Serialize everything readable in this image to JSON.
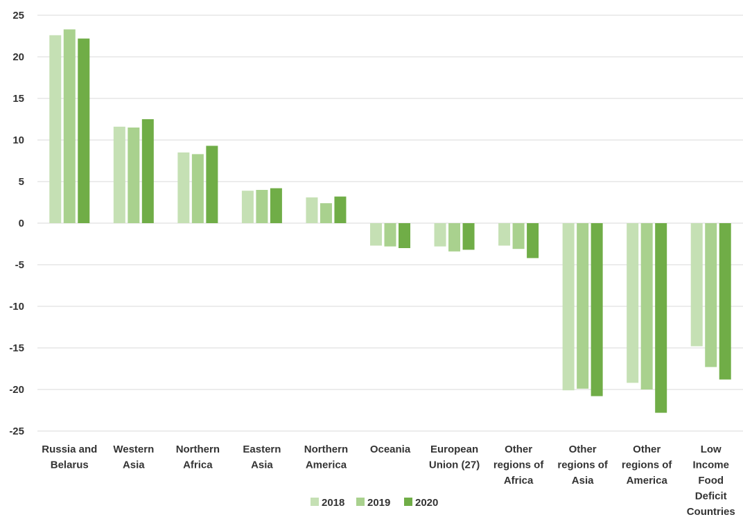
{
  "chart_data": {
    "type": "bar",
    "title": "",
    "xlabel": "",
    "ylabel": "",
    "ylim": [
      -25,
      25
    ],
    "yticks": [
      25,
      20,
      15,
      10,
      5,
      0,
      -5,
      -10,
      -15,
      -20,
      -25
    ],
    "grid": true,
    "legend_position": "bottom",
    "categories": [
      [
        "Russia and",
        "Belarus"
      ],
      [
        "Western",
        "Asia"
      ],
      [
        "Northern",
        "Africa"
      ],
      [
        "Eastern",
        "Asia"
      ],
      [
        "Northern",
        "America"
      ],
      [
        "Oceania"
      ],
      [
        "European",
        "Union (27)"
      ],
      [
        "Other",
        "regions of",
        "Africa"
      ],
      [
        "Other",
        "regions of",
        "Asia"
      ],
      [
        "Other",
        "regions of",
        "America"
      ],
      [
        "Low",
        "Income",
        "Food",
        "Deficit",
        "Countries"
      ]
    ],
    "series": [
      {
        "name": "2018",
        "color": "#c5e0b4",
        "values": [
          22.6,
          11.6,
          8.5,
          3.9,
          3.1,
          -2.7,
          -2.8,
          -2.7,
          -20.1,
          -19.2,
          -14.8
        ]
      },
      {
        "name": "2019",
        "color": "#a9d18e",
        "values": [
          23.3,
          11.5,
          8.3,
          4.0,
          2.4,
          -2.8,
          -3.4,
          -3.1,
          -19.9,
          -20.0,
          -17.3
        ]
      },
      {
        "name": "2020",
        "color": "#70ad47",
        "values": [
          22.2,
          12.5,
          9.3,
          4.2,
          3.2,
          -3.0,
          -3.2,
          -4.2,
          -20.8,
          -22.8,
          -18.8
        ]
      }
    ]
  }
}
